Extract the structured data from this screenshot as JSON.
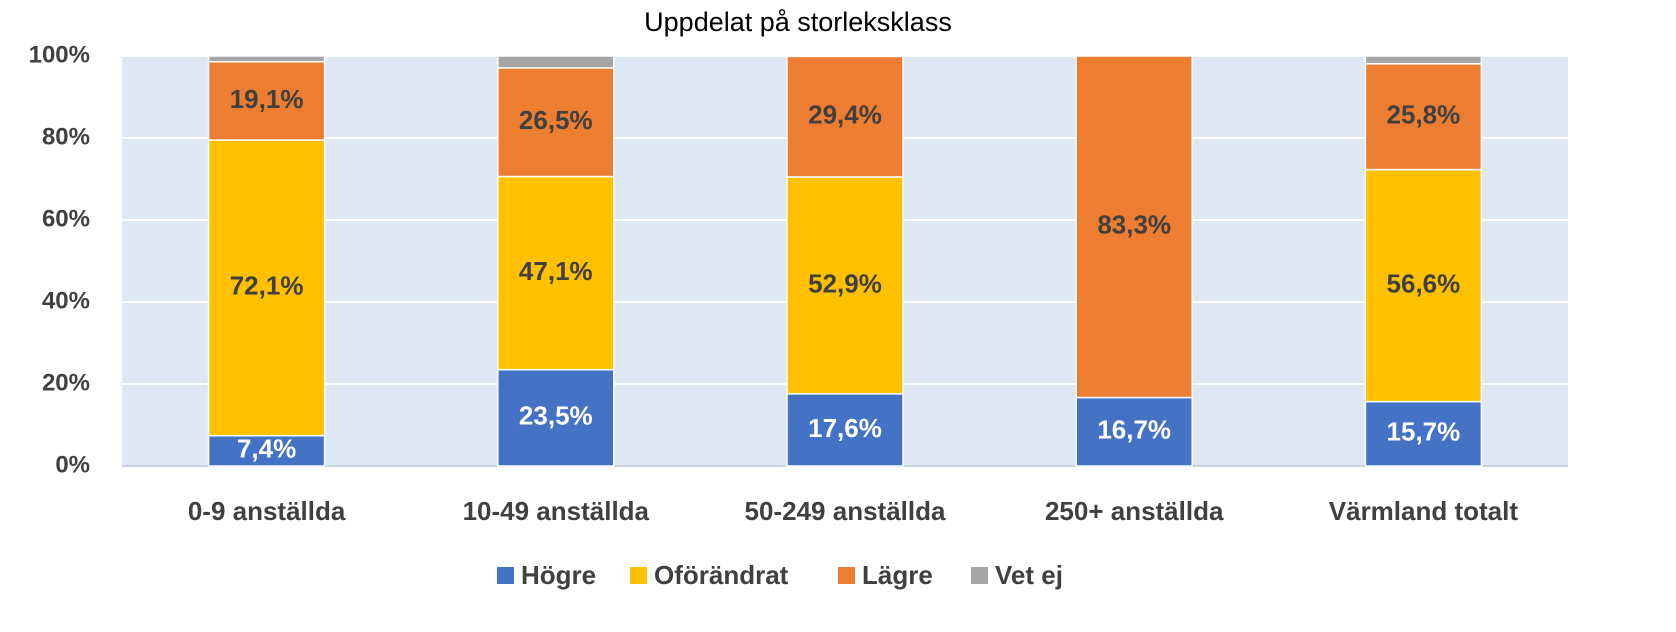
{
  "chart_data": {
    "type": "stacked_bar",
    "title": "Uppdelat på storleksklass",
    "categories": [
      "0-9 anställda",
      "10-49 anställda",
      "50-249 anställda",
      "250+ anställda",
      "Värmland totalt"
    ],
    "series": [
      {
        "name": "Högre",
        "color": "#4472c4",
        "values": [
          7.4,
          23.5,
          17.6,
          16.7,
          15.7
        ],
        "value_labels": [
          "7,4%",
          "23,5%",
          "17,6%",
          "16,7%",
          "15,7%"
        ]
      },
      {
        "name": "Oförändrat",
        "color": "#ffc000",
        "values": [
          72.1,
          47.1,
          52.9,
          0,
          56.6
        ],
        "value_labels": [
          "72,1%",
          "47,1%",
          "52,9%",
          null,
          "56,6%"
        ]
      },
      {
        "name": "Lägre",
        "color": "#ed7d31",
        "values": [
          19.1,
          26.5,
          29.4,
          83.3,
          25.8
        ],
        "value_labels": [
          "19,1%",
          "26,5%",
          "29,4%",
          "83,3%",
          "25,8%"
        ]
      },
      {
        "name": "Vet ej",
        "color": "#a5a5a5",
        "values": [
          1.4,
          2.9,
          0,
          0,
          1.9
        ]
      }
    ],
    "ylim": [
      0,
      100
    ],
    "yticks": [
      {
        "value": 0,
        "label": "0%"
      },
      {
        "value": 20,
        "label": "20%"
      },
      {
        "value": 40,
        "label": "40%"
      },
      {
        "value": 60,
        "label": "60%"
      },
      {
        "value": 80,
        "label": "80%"
      },
      {
        "value": 100,
        "label": "100%"
      }
    ],
    "grid": true,
    "legend": "bottom"
  }
}
